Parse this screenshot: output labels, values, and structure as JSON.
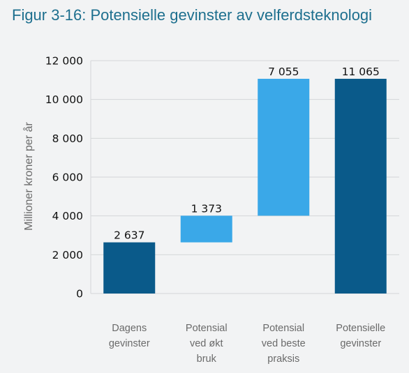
{
  "chart_data": {
    "type": "bar",
    "title": "Figur 3-16: Potensielle gevinster av velferdsteknologi",
    "xlabel": "",
    "ylabel": "Millioner kroner per år",
    "ylim": [
      0,
      12000
    ],
    "yticks": [
      0,
      2000,
      4000,
      6000,
      8000,
      10000,
      12000
    ],
    "ytick_labels": [
      "0",
      "2 000",
      "4 000",
      "6 000",
      "8 000",
      "10 000",
      "12 000"
    ],
    "grid": true,
    "legend": "none",
    "categories": [
      [
        "Dagens",
        "gevinster"
      ],
      [
        "Potensial",
        "ved økt",
        "bruk"
      ],
      [
        "Potensial",
        "ved beste",
        "praksis"
      ],
      [
        "Potensielle",
        "gevinster"
      ]
    ],
    "bars": [
      {
        "base": 0,
        "value": 2637,
        "label": "2 637",
        "color": "#0a5a8a"
      },
      {
        "base": 2637,
        "value": 1373,
        "label": "1 373",
        "color": "#3aa8e8"
      },
      {
        "base": 4010,
        "value": 7055,
        "label": "7 055",
        "color": "#3aa8e8"
      },
      {
        "base": 0,
        "value": 11065,
        "label": "11 065",
        "color": "#0a5a8a"
      }
    ]
  }
}
